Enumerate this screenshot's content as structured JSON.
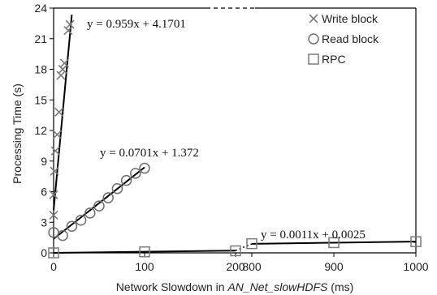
{
  "chart_data": {
    "type": "scatter",
    "xlabel_prefix": "Network Slowdown in ",
    "xlabel_italic": "AN_Net_slowHDFS",
    "xlabel_suffix": " (ms)",
    "ylabel": "Processing Time (s)",
    "ylim": [
      0,
      24
    ],
    "yticks": [
      0,
      3,
      6,
      9,
      12,
      15,
      18,
      21,
      24
    ],
    "x_segments": [
      {
        "range": [
          0,
          200
        ],
        "ticks": [
          0,
          100,
          200
        ]
      },
      {
        "range": [
          800,
          1000
        ],
        "ticks": [
          800,
          900,
          1000
        ]
      }
    ],
    "legend_position": "top-right",
    "series": [
      {
        "name": "Write block",
        "marker": "x",
        "points": [
          {
            "x": 0,
            "y": 3.7
          },
          {
            "x": 0,
            "y": 5.7
          },
          {
            "x": 1,
            "y": 8.0
          },
          {
            "x": 2,
            "y": 10.0
          },
          {
            "x": 4,
            "y": 11.6
          },
          {
            "x": 6,
            "y": 13.8
          },
          {
            "x": 8,
            "y": 17.4
          },
          {
            "x": 10,
            "y": 18.0
          },
          {
            "x": 12,
            "y": 18.6
          },
          {
            "x": 16,
            "y": 21.8
          },
          {
            "x": 18,
            "y": 22.4
          }
        ]
      },
      {
        "name": "Read block",
        "marker": "circle",
        "points": [
          {
            "x": 0,
            "y": 2.0
          },
          {
            "x": 10,
            "y": 1.7
          },
          {
            "x": 20,
            "y": 2.6
          },
          {
            "x": 30,
            "y": 3.2
          },
          {
            "x": 40,
            "y": 3.9
          },
          {
            "x": 50,
            "y": 4.6
          },
          {
            "x": 60,
            "y": 5.4
          },
          {
            "x": 70,
            "y": 6.3
          },
          {
            "x": 80,
            "y": 7.1
          },
          {
            "x": 90,
            "y": 7.8
          },
          {
            "x": 100,
            "y": 8.3
          }
        ]
      },
      {
        "name": "RPC",
        "marker": "square",
        "points": [
          {
            "x": 0,
            "y": 0.0
          },
          {
            "x": 100,
            "y": 0.1
          },
          {
            "x": 200,
            "y": 0.2
          },
          {
            "x": 800,
            "y": 0.9
          },
          {
            "x": 900,
            "y": 1.0
          },
          {
            "x": 1000,
            "y": 1.1
          }
        ]
      }
    ],
    "trendlines": [
      {
        "series": "Write block",
        "slope": 0.959,
        "intercept": 4.1701,
        "x_from": 0,
        "x_to": 20,
        "label": "y = 0.959x + 4.1701"
      },
      {
        "series": "Read block",
        "slope": 0.0701,
        "intercept": 1.372,
        "x_from": 0,
        "x_to": 100,
        "label": "y = 0.0701x + 1.372"
      },
      {
        "series": "RPC",
        "slope": 0.0011,
        "intercept": 0.0025,
        "x_from": 0,
        "x_to": 1000,
        "label": "y = 0.0011x + 0.0025"
      }
    ],
    "colors": {
      "write": "#7a7a7a",
      "read": "#6e6e6e",
      "rpc": "#7a7a7a",
      "line": "#000000"
    }
  }
}
